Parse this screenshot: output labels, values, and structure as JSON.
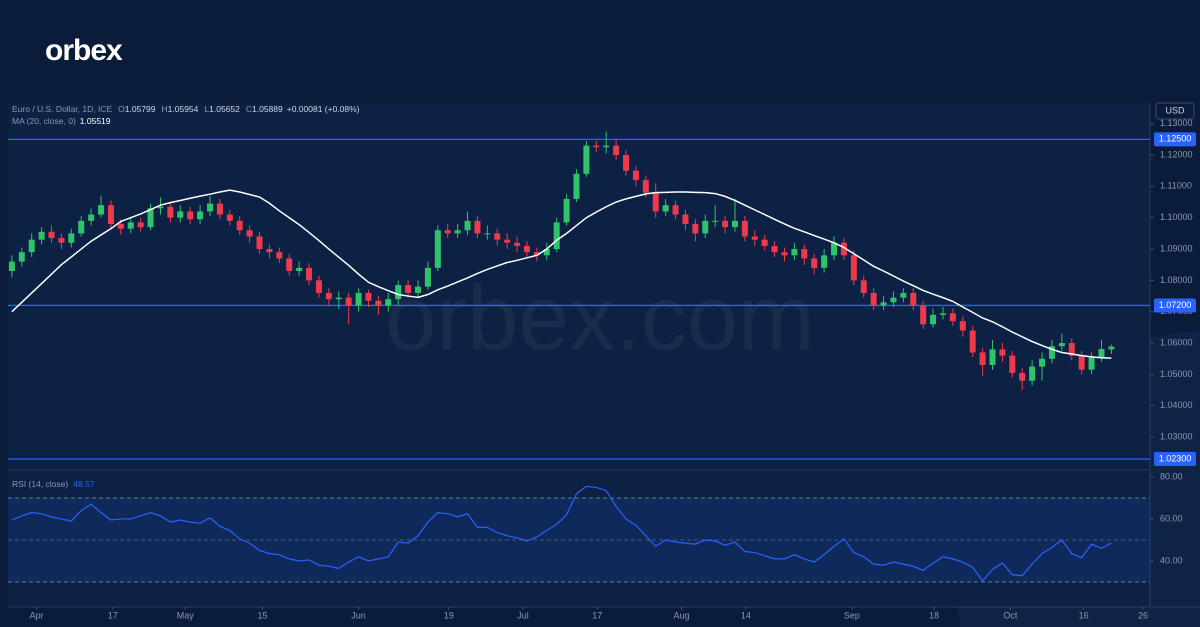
{
  "logo": "orbex",
  "watermark": "orbex.com",
  "chart_data": [
    {
      "type": "candlestick",
      "title": "Euro / U.S. Dollar, 1D, ICE",
      "ohlc_labels": [
        "O",
        "H",
        "L",
        "C"
      ],
      "change": "+0.00081 (+0.08%)",
      "y_unit": "USD",
      "up_color": "#2fc46b",
      "down_color": "#ef3a4c",
      "open": [
        1.083,
        1.086,
        1.089,
        1.093,
        1.0955,
        1.0935,
        1.092,
        1.095,
        1.099,
        1.101,
        1.104,
        1.098,
        1.0965,
        1.0985,
        1.097,
        1.103,
        1.1035,
        1.1,
        1.102,
        1.0995,
        1.102,
        1.1045,
        1.101,
        1.099,
        1.096,
        1.094,
        1.09,
        1.089,
        1.087,
        1.083,
        1.084,
        1.08,
        1.076,
        1.074,
        1.0745,
        1.072,
        1.076,
        1.0735,
        1.072,
        1.074,
        1.0785,
        1.076,
        1.078,
        1.084,
        1.096,
        1.095,
        1.096,
        1.099,
        1.095,
        1.095,
        1.093,
        1.092,
        1.091,
        1.089,
        1.088,
        1.09,
        1.0985,
        1.106,
        1.114,
        1.123,
        1.1225,
        1.123,
        1.12,
        1.115,
        1.112,
        1.108,
        1.102,
        1.104,
        1.101,
        1.098,
        1.095,
        1.099,
        1.099,
        1.097,
        1.099,
        1.094,
        1.093,
        1.091,
        1.089,
        1.088,
        1.09,
        1.087,
        1.084,
        1.088,
        1.092,
        1.088,
        1.08,
        1.076,
        1.072,
        1.073,
        1.0745,
        1.076,
        1.072,
        1.066,
        1.069,
        1.0695,
        1.067,
        1.064,
        1.057,
        1.053,
        1.058,
        1.056,
        1.0505,
        1.048,
        1.0525,
        1.055,
        1.059,
        1.06,
        1.056,
        1.0515,
        1.0555,
        1.05799
      ],
      "high": [
        1.088,
        1.0905,
        1.095,
        1.097,
        1.0975,
        1.095,
        1.0965,
        1.1005,
        1.103,
        1.107,
        1.1055,
        1.0995,
        1.1,
        1.1,
        1.1045,
        1.1065,
        1.105,
        1.104,
        1.1035,
        1.104,
        1.107,
        1.106,
        1.1025,
        1.1005,
        1.0975,
        1.0955,
        1.0915,
        1.0905,
        1.0885,
        1.086,
        1.0855,
        1.0815,
        1.0775,
        1.0765,
        1.076,
        1.0775,
        1.077,
        1.075,
        1.076,
        1.08,
        1.08,
        1.08,
        1.086,
        1.0975,
        1.098,
        1.098,
        1.102,
        1.1005,
        1.0975,
        1.0965,
        1.095,
        1.094,
        1.0925,
        1.0905,
        1.092,
        1.1,
        1.1075,
        1.1155,
        1.1245,
        1.1245,
        1.1275,
        1.125,
        1.1215,
        1.1165,
        1.1135,
        1.111,
        1.106,
        1.1055,
        1.1025,
        1.0995,
        1.101,
        1.104,
        1.1005,
        1.106,
        1.1005,
        1.096,
        1.0945,
        1.0925,
        1.0905,
        1.092,
        1.0915,
        1.0885,
        1.09,
        1.094,
        1.0935,
        1.0895,
        1.0815,
        1.0775,
        1.075,
        1.0765,
        1.0775,
        1.0775,
        1.0735,
        1.071,
        1.0715,
        1.071,
        1.0685,
        1.0655,
        1.0585,
        1.061,
        1.06,
        1.0575,
        1.052,
        1.0545,
        1.057,
        1.061,
        1.063,
        1.0615,
        1.0575,
        1.057,
        1.061,
        1.05954
      ],
      "low": [
        1.081,
        1.0845,
        1.0875,
        1.0915,
        1.092,
        1.09,
        1.0905,
        1.094,
        1.0975,
        1.1,
        1.0965,
        1.0945,
        1.095,
        1.0955,
        1.096,
        1.101,
        1.0985,
        1.0985,
        1.098,
        1.098,
        1.1005,
        1.0995,
        1.0975,
        1.0945,
        1.092,
        1.0885,
        1.087,
        1.0855,
        1.0815,
        1.0815,
        1.0785,
        1.0745,
        1.072,
        1.071,
        1.066,
        1.07,
        1.0715,
        1.069,
        1.07,
        1.072,
        1.0745,
        1.0745,
        1.077,
        1.083,
        1.0935,
        1.0935,
        1.0945,
        1.0935,
        1.093,
        1.091,
        1.09,
        1.089,
        1.087,
        1.086,
        1.0865,
        1.089,
        1.0975,
        1.105,
        1.113,
        1.121,
        1.1205,
        1.1185,
        1.1135,
        1.11,
        1.1065,
        1.1,
        1.1005,
        1.0995,
        1.096,
        1.0925,
        1.0935,
        1.097,
        1.095,
        1.0955,
        1.0925,
        1.091,
        1.0895,
        1.0875,
        1.086,
        1.0865,
        1.085,
        1.082,
        1.0825,
        1.0865,
        1.0865,
        1.0785,
        1.0745,
        1.0705,
        1.0705,
        1.0715,
        1.073,
        1.0705,
        1.0645,
        1.065,
        1.0675,
        1.0655,
        1.062,
        1.0555,
        1.0495,
        1.0515,
        1.054,
        1.049,
        1.045,
        1.0465,
        1.048,
        1.0535,
        1.0575,
        1.0545,
        1.05,
        1.05,
        1.054,
        1.05652
      ],
      "close": [
        1.086,
        1.089,
        1.093,
        1.0955,
        1.0935,
        1.092,
        1.095,
        1.099,
        1.101,
        1.104,
        1.098,
        1.0965,
        1.0985,
        1.097,
        1.103,
        1.1035,
        1.1,
        1.102,
        1.0995,
        1.102,
        1.1045,
        1.101,
        1.099,
        1.096,
        1.094,
        1.09,
        1.089,
        1.087,
        1.083,
        1.084,
        1.08,
        1.076,
        1.074,
        1.0745,
        1.072,
        1.076,
        1.0735,
        1.072,
        1.074,
        1.0785,
        1.076,
        1.078,
        1.084,
        1.096,
        1.095,
        1.096,
        1.099,
        1.095,
        1.095,
        1.093,
        1.092,
        1.091,
        1.089,
        1.088,
        1.09,
        1.0985,
        1.106,
        1.114,
        1.123,
        1.1225,
        1.123,
        1.12,
        1.115,
        1.112,
        1.108,
        1.102,
        1.104,
        1.101,
        1.098,
        1.095,
        1.099,
        1.099,
        1.097,
        1.099,
        1.094,
        1.093,
        1.091,
        1.089,
        1.088,
        1.09,
        1.087,
        1.084,
        1.088,
        1.092,
        1.088,
        1.08,
        1.076,
        1.072,
        1.073,
        1.0745,
        1.076,
        1.072,
        1.066,
        1.069,
        1.0695,
        1.067,
        1.064,
        1.057,
        1.053,
        1.058,
        1.056,
        1.0505,
        1.048,
        1.0525,
        1.055,
        1.059,
        1.06,
        1.056,
        1.0515,
        1.0555,
        1.0581,
        1.05889
      ],
      "series": [
        {
          "name": "MA (20, close, 0)",
          "color": "#ffffff",
          "values": [
            1.07,
            1.073,
            1.076,
            1.079,
            1.082,
            1.085,
            1.0875,
            1.09,
            1.0925,
            1.0945,
            1.0965,
            1.0988,
            1.1,
            1.1012,
            1.1026,
            1.104,
            1.1048,
            1.1055,
            1.1062,
            1.1069,
            1.1075,
            1.1082,
            1.1088,
            1.1082,
            1.1074,
            1.1066,
            1.1046,
            1.1022,
            1.1,
            1.0978,
            1.0953,
            1.0927,
            1.09,
            1.0874,
            1.0848,
            1.082,
            1.0794,
            1.078,
            1.0767,
            1.0755,
            1.075,
            1.0746,
            1.0755,
            1.077,
            1.0782,
            1.0795,
            1.0808,
            1.0822,
            1.0835,
            1.0846,
            1.0857,
            1.0864,
            1.0872,
            1.088,
            1.09,
            1.0928,
            1.095,
            1.0975,
            1.1,
            1.1018,
            1.1035,
            1.105,
            1.106,
            1.1068,
            1.1076,
            1.108,
            1.1081,
            1.1082,
            1.1082,
            1.1081,
            1.108,
            1.1077,
            1.1068,
            1.1055,
            1.104,
            1.1025,
            1.101,
            1.0995,
            1.098,
            1.0966,
            1.0955,
            1.0943,
            1.0932,
            1.092,
            1.0905,
            1.0885,
            1.0865,
            1.0845,
            1.083,
            1.0814,
            1.0798,
            1.0783,
            1.0768,
            1.0756,
            1.0745,
            1.0733,
            1.0715,
            1.0698,
            1.068,
            1.0668,
            1.0652,
            1.0635,
            1.062,
            1.0605,
            1.0592,
            1.058,
            1.057,
            1.0565,
            1.056,
            1.0556,
            1.0553,
            1.05519
          ]
        }
      ],
      "ylim": [
        1.0195,
        1.1366
      ],
      "yticks": [
        {
          "value": 1.03,
          "label": "1.03000"
        },
        {
          "value": 1.04,
          "label": "1.04000"
        },
        {
          "value": 1.05,
          "label": "1.05000"
        },
        {
          "value": 1.06,
          "label": "1.06000"
        },
        {
          "value": 1.07,
          "label": "1.07000"
        },
        {
          "value": 1.08,
          "label": "1.08000"
        },
        {
          "value": 1.09,
          "label": "1.09000"
        },
        {
          "value": 1.1,
          "label": "1.10000"
        },
        {
          "value": 1.11,
          "label": "1.11000"
        },
        {
          "value": 1.12,
          "label": "1.12000"
        },
        {
          "value": 1.13,
          "label": "1.13000"
        }
      ],
      "levels": [
        {
          "value": 1.125,
          "label": "1.12500"
        },
        {
          "value": 1.072,
          "label": "1.07200"
        },
        {
          "value": 1.023,
          "label": "1.02300"
        }
      ],
      "level_color": "#2962ff",
      "xlim": [
        -1.2,
        114.9
      ],
      "xticks": [
        {
          "value": 2.5,
          "label": "Apr"
        },
        {
          "value": 10.2,
          "label": "17"
        },
        {
          "value": 17.5,
          "label": "May"
        },
        {
          "value": 25.3,
          "label": "15"
        },
        {
          "value": 35.0,
          "label": "Jun"
        },
        {
          "value": 44.1,
          "label": "19"
        },
        {
          "value": 51.6,
          "label": "Jul"
        },
        {
          "value": 59.1,
          "label": "17"
        },
        {
          "value": 67.6,
          "label": "Aug"
        },
        {
          "value": 74.1,
          "label": "14"
        },
        {
          "value": 84.8,
          "label": "Sep"
        },
        {
          "value": 93.1,
          "label": "18"
        },
        {
          "value": 100.8,
          "label": "Oct"
        },
        {
          "value": 108.2,
          "label": "16"
        },
        {
          "value": 114.2,
          "label": "26"
        }
      ]
    },
    {
      "type": "line",
      "series": [
        {
          "name": "RSI (14, close)",
          "color": "#2962ff",
          "values": [
            59.5,
            61.5,
            63.0,
            62.5,
            61.0,
            60.0,
            59.0,
            64.0,
            67.0,
            63.0,
            59.5,
            60.0,
            60.0,
            61.5,
            63.0,
            61.5,
            58.5,
            59.5,
            58.5,
            58.0,
            60.5,
            56.5,
            54.5,
            50.5,
            48.5,
            45.0,
            43.5,
            43.0,
            41.0,
            40.0,
            40.5,
            38.0,
            37.5,
            36.5,
            39.5,
            42.0,
            40.0,
            41.0,
            42.0,
            49.0,
            48.5,
            52.0,
            58.5,
            63.0,
            62.5,
            61.0,
            62.5,
            56.0,
            56.0,
            53.5,
            52.0,
            51.0,
            49.5,
            51.5,
            54.5,
            57.5,
            62.0,
            72.0,
            75.5,
            75.0,
            73.5,
            66.0,
            60.0,
            57.0,
            52.0,
            47.0,
            50.0,
            49.0,
            48.5,
            48.0,
            50.0,
            49.5,
            47.5,
            49.0,
            44.5,
            44.0,
            42.5,
            41.0,
            41.0,
            43.0,
            41.0,
            39.5,
            43.0,
            47.0,
            50.5,
            44.0,
            42.0,
            38.5,
            38.0,
            39.5,
            38.5,
            37.5,
            35.5,
            39.0,
            42.0,
            41.0,
            39.5,
            37.0,
            30.5,
            36.0,
            39.0,
            33.5,
            33.0,
            38.5,
            43.5,
            46.5,
            50.0,
            43.5,
            41.5,
            48.0,
            46.0,
            48.57
          ]
        }
      ],
      "ylim": [
        18.1,
        83.3
      ],
      "yticks": [
        {
          "value": 40,
          "label": "40.00"
        },
        {
          "value": 60,
          "label": "60.00"
        },
        {
          "value": 80,
          "label": "80.00"
        }
      ],
      "bands": [
        30,
        70
      ],
      "midline": 50,
      "band_color": "rgba(41,98,255,0.12)"
    }
  ]
}
